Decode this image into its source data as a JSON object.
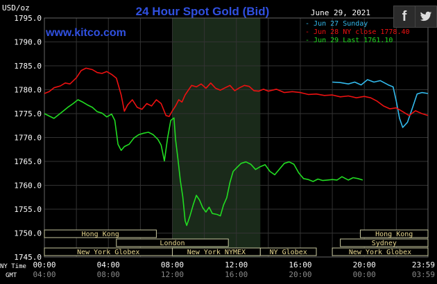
{
  "header": {
    "title": "24 Hour Spot Gold (Bid)",
    "date": "June 29, 2021",
    "site": "www.kitco.com",
    "unit": "USD/oz"
  },
  "share_icons": [
    "facebook-icon",
    "twitter-icon"
  ],
  "sessions": [
    {
      "name": "Hong Kong",
      "row": 0,
      "start": 0,
      "end": 7.0
    },
    {
      "name": "London",
      "row": 1,
      "start": 4.5,
      "end": 11.5
    },
    {
      "name": "New York Globex",
      "row": 2,
      "start": 0,
      "end": 8.0
    },
    {
      "name": "New York NYMEX",
      "row": 2,
      "start": 8.0,
      "end": 13.5
    },
    {
      "name": "NY Globex",
      "row": 2,
      "start": 13.5,
      "end": 17.0
    },
    {
      "name": "Hong Kong",
      "row": 0,
      "start": 19.75,
      "end": 23.98
    },
    {
      "name": "Sydney",
      "row": 1,
      "start": 18.5,
      "end": 23.98
    },
    {
      "name": "New York Globex",
      "row": 2,
      "start": 18.0,
      "end": 23.98
    }
  ],
  "time_axis": {
    "ny_label": "NY Time",
    "gmt_label": "GMT",
    "ny_ticks": [
      "00:00",
      "04:00",
      "08:00",
      "12:00",
      "16:00",
      "20:00",
      "23:59"
    ],
    "gmt_ticks": [
      "04:00",
      "08:00",
      "12:00",
      "16:00",
      "20:00",
      "00:00",
      "03:59"
    ]
  },
  "chart_data": {
    "type": "line",
    "title": "24 Hour Spot Gold (Bid)",
    "ylabel": "USD/oz",
    "ylim": [
      1745,
      1795
    ],
    "xlim": [
      0,
      23.98
    ],
    "yticks": [
      "1795.0",
      "1790.0",
      "1785.0",
      "1780.0",
      "1775.0",
      "1770.0",
      "1765.0",
      "1760.0",
      "1755.0",
      "1750.0",
      "1745.0"
    ],
    "grid": true,
    "legend": "top-right",
    "series": [
      {
        "name": "Jun 27 Sunday",
        "color": "#33bbee",
        "points": [
          [
            18.0,
            1781.6
          ],
          [
            18.5,
            1781.5
          ],
          [
            19.0,
            1781.2
          ],
          [
            19.4,
            1781.6
          ],
          [
            19.8,
            1781.0
          ],
          [
            20.2,
            1782.1
          ],
          [
            20.6,
            1781.6
          ],
          [
            21.0,
            1781.9
          ],
          [
            21.5,
            1781.0
          ],
          [
            21.8,
            1780.6
          ],
          [
            22.0,
            1777.6
          ],
          [
            22.2,
            1774.0
          ],
          [
            22.4,
            1772.1
          ],
          [
            22.7,
            1773.2
          ],
          [
            23.0,
            1776.1
          ],
          [
            23.3,
            1779.1
          ],
          [
            23.6,
            1779.4
          ],
          [
            23.98,
            1779.2
          ]
        ]
      },
      {
        "name": "Jun 28 NY close 1778.40",
        "color": "#ee1111",
        "points": [
          [
            0,
            1779.2
          ],
          [
            0.3,
            1779.6
          ],
          [
            0.6,
            1780.4
          ],
          [
            1.0,
            1780.8
          ],
          [
            1.3,
            1781.4
          ],
          [
            1.6,
            1781.2
          ],
          [
            2.0,
            1782.5
          ],
          [
            2.3,
            1784.0
          ],
          [
            2.6,
            1784.5
          ],
          [
            3.0,
            1784.2
          ],
          [
            3.3,
            1783.6
          ],
          [
            3.6,
            1783.4
          ],
          [
            3.9,
            1783.8
          ],
          [
            4.2,
            1783.2
          ],
          [
            4.5,
            1782.4
          ],
          [
            4.8,
            1778.9
          ],
          [
            5.0,
            1775.5
          ],
          [
            5.2,
            1776.8
          ],
          [
            5.5,
            1777.9
          ],
          [
            5.8,
            1776.3
          ],
          [
            6.1,
            1775.9
          ],
          [
            6.4,
            1777.1
          ],
          [
            6.7,
            1776.6
          ],
          [
            7.0,
            1777.9
          ],
          [
            7.3,
            1777.1
          ],
          [
            7.6,
            1774.6
          ],
          [
            7.8,
            1774.4
          ],
          [
            8.0,
            1775.6
          ],
          [
            8.2,
            1776.6
          ],
          [
            8.4,
            1777.9
          ],
          [
            8.6,
            1777.4
          ],
          [
            8.8,
            1778.9
          ],
          [
            9.0,
            1779.9
          ],
          [
            9.2,
            1780.9
          ],
          [
            9.5,
            1780.6
          ],
          [
            9.8,
            1781.2
          ],
          [
            10.1,
            1780.3
          ],
          [
            10.4,
            1781.4
          ],
          [
            10.7,
            1780.3
          ],
          [
            11.0,
            1779.9
          ],
          [
            11.3,
            1780.4
          ],
          [
            11.6,
            1780.9
          ],
          [
            11.9,
            1779.8
          ],
          [
            12.2,
            1780.4
          ],
          [
            12.5,
            1780.9
          ],
          [
            12.8,
            1780.7
          ],
          [
            13.1,
            1779.8
          ],
          [
            13.4,
            1779.7
          ],
          [
            13.7,
            1780.1
          ],
          [
            14.0,
            1779.7
          ],
          [
            14.5,
            1780.1
          ],
          [
            15.0,
            1779.4
          ],
          [
            15.5,
            1779.6
          ],
          [
            16.0,
            1779.4
          ],
          [
            16.5,
            1779.0
          ],
          [
            17.0,
            1779.1
          ],
          [
            17.5,
            1778.8
          ],
          [
            18.0,
            1778.9
          ],
          [
            18.5,
            1778.5
          ],
          [
            19.0,
            1778.7
          ],
          [
            19.5,
            1778.3
          ],
          [
            20.0,
            1778.6
          ],
          [
            20.4,
            1778.3
          ],
          [
            20.8,
            1777.6
          ],
          [
            21.2,
            1776.6
          ],
          [
            21.6,
            1776.0
          ],
          [
            22.0,
            1776.2
          ],
          [
            22.4,
            1775.4
          ],
          [
            22.8,
            1774.6
          ],
          [
            23.2,
            1775.6
          ],
          [
            23.6,
            1775.0
          ],
          [
            23.98,
            1774.6
          ]
        ]
      },
      {
        "name": "Jun 29 Last 1761.10",
        "color": "#22dd22",
        "points": [
          [
            0,
            1775.0
          ],
          [
            0.3,
            1774.5
          ],
          [
            0.6,
            1774.0
          ],
          [
            0.9,
            1774.8
          ],
          [
            1.2,
            1775.6
          ],
          [
            1.5,
            1776.4
          ],
          [
            1.8,
            1777.1
          ],
          [
            2.1,
            1777.9
          ],
          [
            2.4,
            1777.4
          ],
          [
            2.7,
            1776.8
          ],
          [
            3.0,
            1776.3
          ],
          [
            3.3,
            1775.4
          ],
          [
            3.6,
            1775.1
          ],
          [
            3.9,
            1774.3
          ],
          [
            4.2,
            1774.9
          ],
          [
            4.4,
            1773.6
          ],
          [
            4.6,
            1768.6
          ],
          [
            4.8,
            1767.3
          ],
          [
            5.0,
            1768.1
          ],
          [
            5.3,
            1768.6
          ],
          [
            5.6,
            1769.9
          ],
          [
            5.9,
            1770.6
          ],
          [
            6.2,
            1770.9
          ],
          [
            6.5,
            1771.1
          ],
          [
            6.8,
            1770.6
          ],
          [
            7.1,
            1769.6
          ],
          [
            7.3,
            1768.4
          ],
          [
            7.5,
            1765.1
          ],
          [
            7.7,
            1769.9
          ],
          [
            7.9,
            1773.6
          ],
          [
            8.1,
            1774.1
          ],
          [
            8.2,
            1769.6
          ],
          [
            8.35,
            1765.4
          ],
          [
            8.5,
            1761.0
          ],
          [
            8.65,
            1757.6
          ],
          [
            8.8,
            1752.6
          ],
          [
            8.9,
            1751.6
          ],
          [
            9.1,
            1753.6
          ],
          [
            9.3,
            1755.9
          ],
          [
            9.5,
            1757.9
          ],
          [
            9.7,
            1756.9
          ],
          [
            9.9,
            1755.3
          ],
          [
            10.1,
            1754.4
          ],
          [
            10.3,
            1755.4
          ],
          [
            10.5,
            1754.1
          ],
          [
            10.8,
            1753.9
          ],
          [
            11.0,
            1753.6
          ],
          [
            11.2,
            1755.9
          ],
          [
            11.4,
            1757.4
          ],
          [
            11.6,
            1760.6
          ],
          [
            11.8,
            1762.9
          ],
          [
            12.0,
            1763.6
          ],
          [
            12.3,
            1764.6
          ],
          [
            12.6,
            1764.9
          ],
          [
            12.9,
            1764.4
          ],
          [
            13.2,
            1763.3
          ],
          [
            13.5,
            1763.9
          ],
          [
            13.8,
            1764.3
          ],
          [
            14.1,
            1762.9
          ],
          [
            14.4,
            1762.2
          ],
          [
            14.7,
            1763.4
          ],
          [
            15.0,
            1764.6
          ],
          [
            15.3,
            1764.9
          ],
          [
            15.6,
            1764.4
          ],
          [
            15.9,
            1762.6
          ],
          [
            16.2,
            1761.4
          ],
          [
            16.5,
            1761.2
          ],
          [
            16.8,
            1760.8
          ],
          [
            17.1,
            1761.3
          ],
          [
            17.4,
            1761.0
          ],
          [
            17.7,
            1761.1
          ],
          [
            18.0,
            1761.2
          ],
          [
            18.3,
            1761.1
          ],
          [
            18.6,
            1761.8
          ],
          [
            19.0,
            1761.1
          ],
          [
            19.3,
            1761.6
          ],
          [
            19.6,
            1761.4
          ],
          [
            19.9,
            1761.1
          ]
        ]
      }
    ]
  }
}
